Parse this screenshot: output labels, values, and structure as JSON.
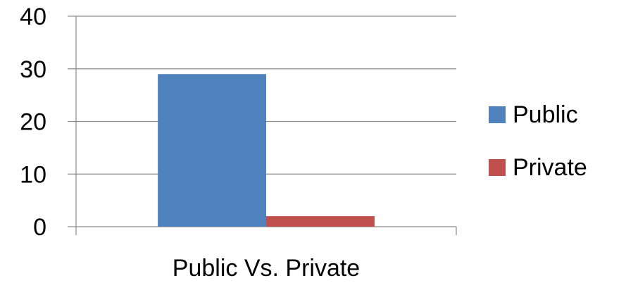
{
  "chart_data": {
    "type": "bar",
    "categories": [
      "Public Vs. Private"
    ],
    "series": [
      {
        "name": "Public",
        "values": [
          29
        ],
        "color": "#4f81bd"
      },
      {
        "name": "Private",
        "values": [
          2
        ],
        "color": "#c0504d"
      }
    ],
    "y_ticks": [
      "0",
      "10",
      "20",
      "30",
      "40"
    ],
    "ylim": [
      0,
      40
    ],
    "grid": true,
    "legend": "right"
  }
}
